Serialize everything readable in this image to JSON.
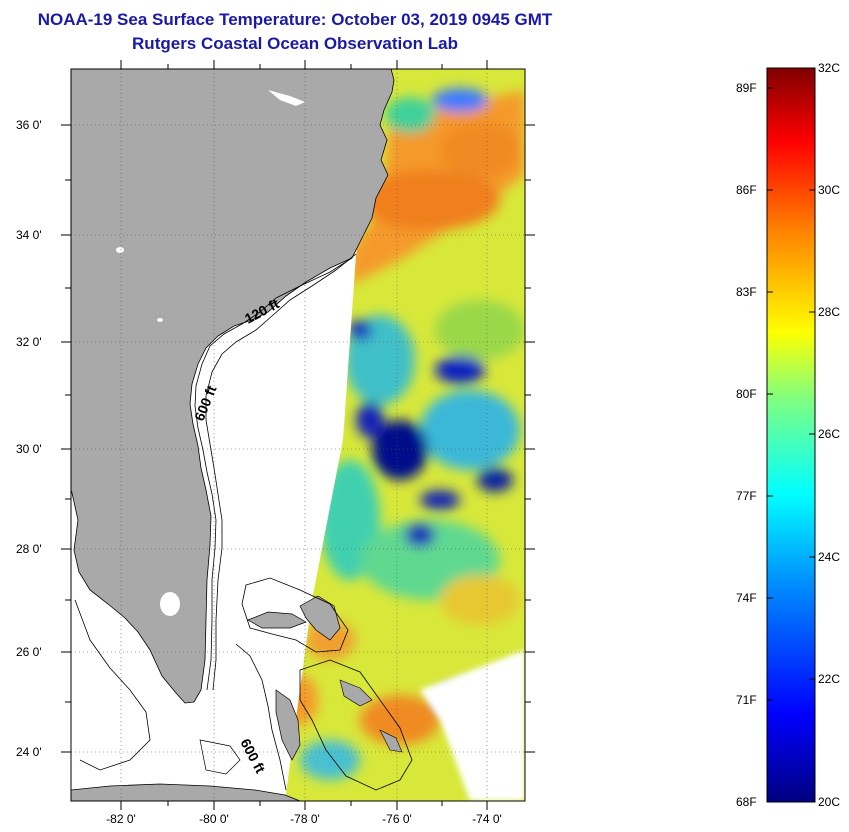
{
  "title": "NOAA-19 Sea Surface Temperature:  October 03, 2019 0945 GMT",
  "subtitle": "Rutgers Coastal Ocean Observation Lab",
  "map": {
    "lon_range": [
      -83,
      -73
    ],
    "lat_range": [
      23,
      37
    ],
    "lat_ticks": [
      "36 0'",
      "34 0'",
      "32 0'",
      "30 0'",
      "28 0'",
      "26 0'",
      "24 0'"
    ],
    "lon_ticks": [
      "-82 0'",
      "-80 0'",
      "-78 0'",
      "-76 0'",
      "-74 0'"
    ],
    "contour_labels": [
      "120 ft",
      "600 ft",
      "600 ft"
    ],
    "land_color": "#a9a9a9",
    "water_color": "#ffffff"
  },
  "colorbar": {
    "min_c": 20,
    "max_c": 32,
    "fahrenheit_labels": [
      "89F",
      "86F",
      "83F",
      "80F",
      "77F",
      "74F",
      "71F",
      "68F"
    ],
    "celsius_labels": [
      "32C",
      "30C",
      "28C",
      "26C",
      "24C",
      "22C",
      "20C"
    ],
    "colors": [
      "#000080",
      "#0000ff",
      "#0080ff",
      "#00ffff",
      "#80ff80",
      "#ffff00",
      "#ff8000",
      "#ff0000",
      "#800000"
    ]
  }
}
